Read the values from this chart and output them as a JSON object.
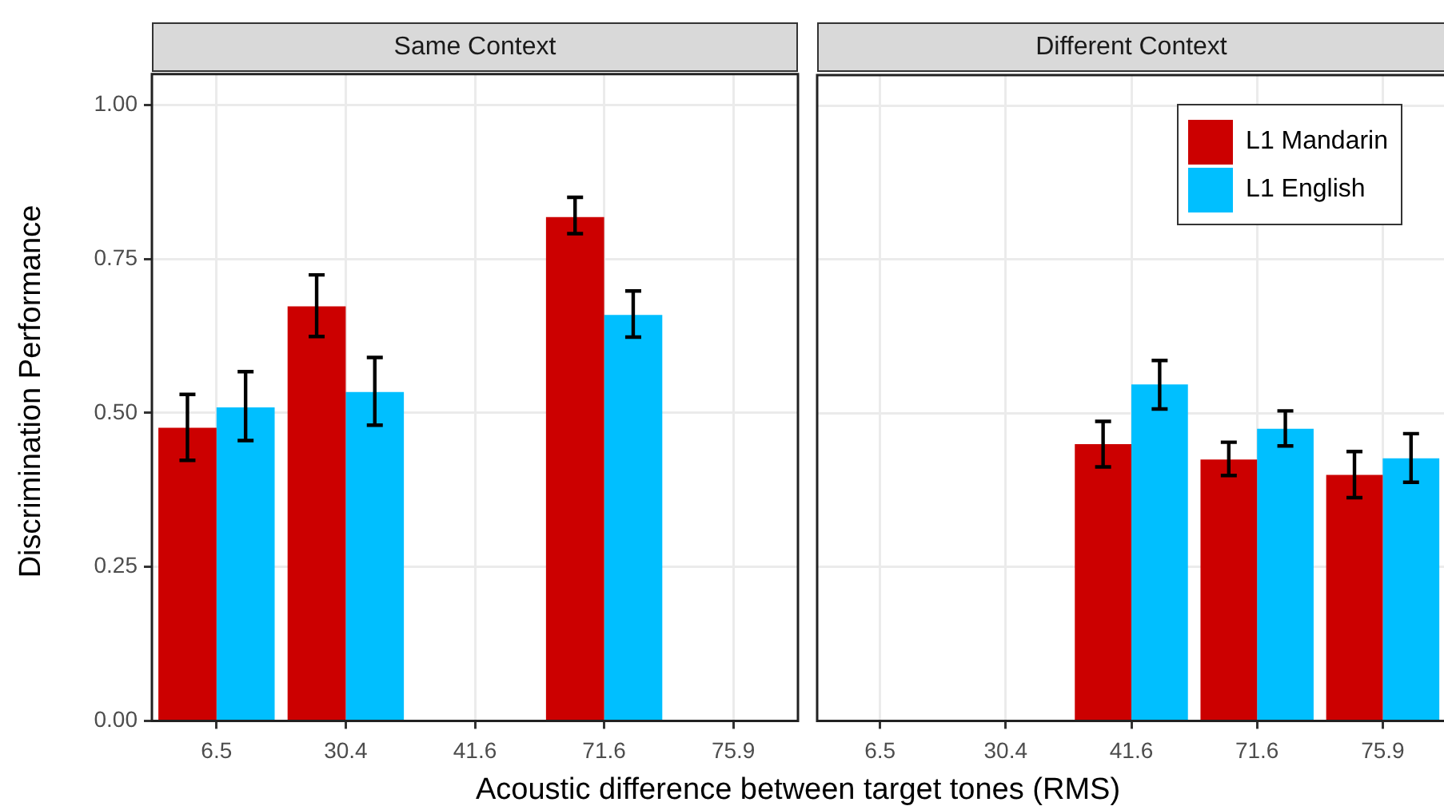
{
  "chart_data": [
    {
      "type": "bar",
      "title": "Same Context",
      "xlabel": "Acoustic difference between target tones (RMS)",
      "ylabel": "Discrimination Performance",
      "categories": [
        "6.5",
        "30.4",
        "41.6",
        "71.6",
        "75.9"
      ],
      "series": [
        {
          "color": "#cc0000",
          "values": [
            0.476,
            0.673,
            null,
            0.818,
            null
          ],
          "errors": [
            [
              0.423,
              0.53
            ],
            [
              0.624,
              0.724
            ],
            null,
            [
              0.791,
              0.85
            ],
            null
          ]
        },
        {
          "color": "#00bfff",
          "values": [
            0.509,
            0.534,
            null,
            0.659,
            null
          ],
          "errors": [
            [
              0.455,
              0.567
            ],
            [
              0.48,
              0.59
            ],
            null,
            [
              0.623,
              0.698
            ],
            null
          ]
        }
      ],
      "ylim": [
        0,
        1.05
      ],
      "yticks": [
        {
          "value": 0,
          "label": "0.00"
        },
        {
          "value": 0.25,
          "label": "0.25"
        },
        {
          "value": 0.5,
          "label": "0.50"
        },
        {
          "value": 0.75,
          "label": "0.75"
        },
        {
          "value": 1,
          "label": "1.00"
        }
      ],
      "grid": true,
      "legend": false
    },
    {
      "type": "bar",
      "title": "Different Context",
      "categories": [
        "6.5",
        "30.4",
        "41.6",
        "71.6",
        "75.9"
      ],
      "series": [
        {
          "name": "L1 Mandarin",
          "color": "#cc0000",
          "values": [
            null,
            null,
            0.45,
            0.425,
            0.4
          ],
          "errors": [
            null,
            null,
            [
              0.413,
              0.487
            ],
            [
              0.399,
              0.453
            ],
            [
              0.363,
              0.438
            ]
          ]
        },
        {
          "name": "L1 English",
          "color": "#00bfff",
          "values": [
            null,
            null,
            0.547,
            0.475,
            0.427
          ],
          "errors": [
            null,
            null,
            [
              0.507,
              0.586
            ],
            [
              0.447,
              0.504
            ],
            [
              0.388,
              0.467
            ]
          ]
        }
      ],
      "ylim": [
        0,
        1.05
      ],
      "yticks": [
        0,
        0.25,
        0.5,
        0.75,
        1
      ],
      "grid": true,
      "legend": "top right",
      "tick_labels": "x"
    }
  ]
}
